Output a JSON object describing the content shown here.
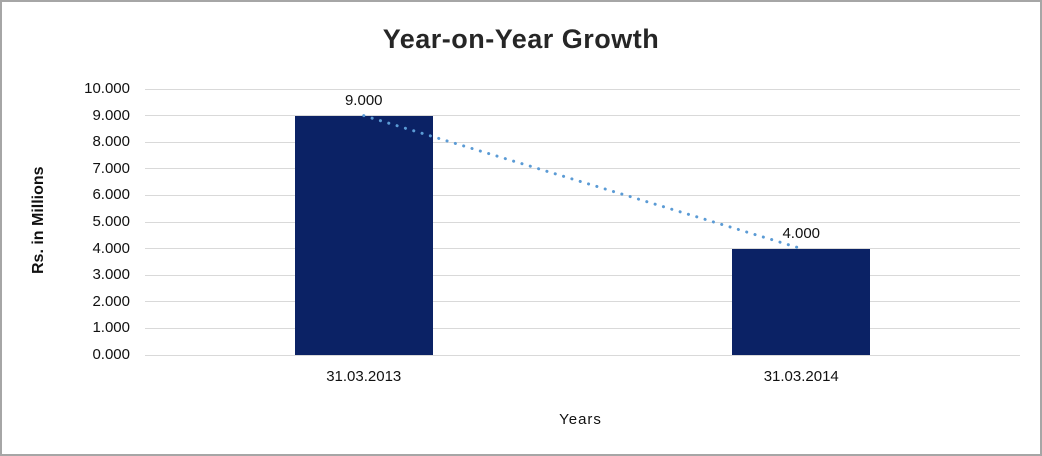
{
  "window": {
    "background": "#ffffff",
    "border_color": "#a6a6a6"
  },
  "chart_data": {
    "type": "bar",
    "title": "Year-on-Year Growth",
    "xlabel": "Years",
    "ylabel": "Rs. in Millions",
    "categories": [
      "31.03.2013",
      "31.03.2014"
    ],
    "values": [
      9.0,
      4.0
    ],
    "data_labels": [
      "9.000",
      "4.000"
    ],
    "ylim": [
      0,
      10
    ],
    "ytick_step": 1,
    "ytick_labels": [
      "0.000",
      "1.000",
      "2.000",
      "3.000",
      "4.000",
      "5.000",
      "6.000",
      "7.000",
      "8.000",
      "9.000",
      "10.000"
    ],
    "grid": true,
    "legend_position": "none",
    "bar_color": "#0b2265",
    "gridline_color": "#d9d9d9",
    "trendline": {
      "style": "dotted",
      "color": "#5b9bd5",
      "from": [
        0,
        9.0
      ],
      "to": [
        1,
        4.0
      ]
    }
  }
}
